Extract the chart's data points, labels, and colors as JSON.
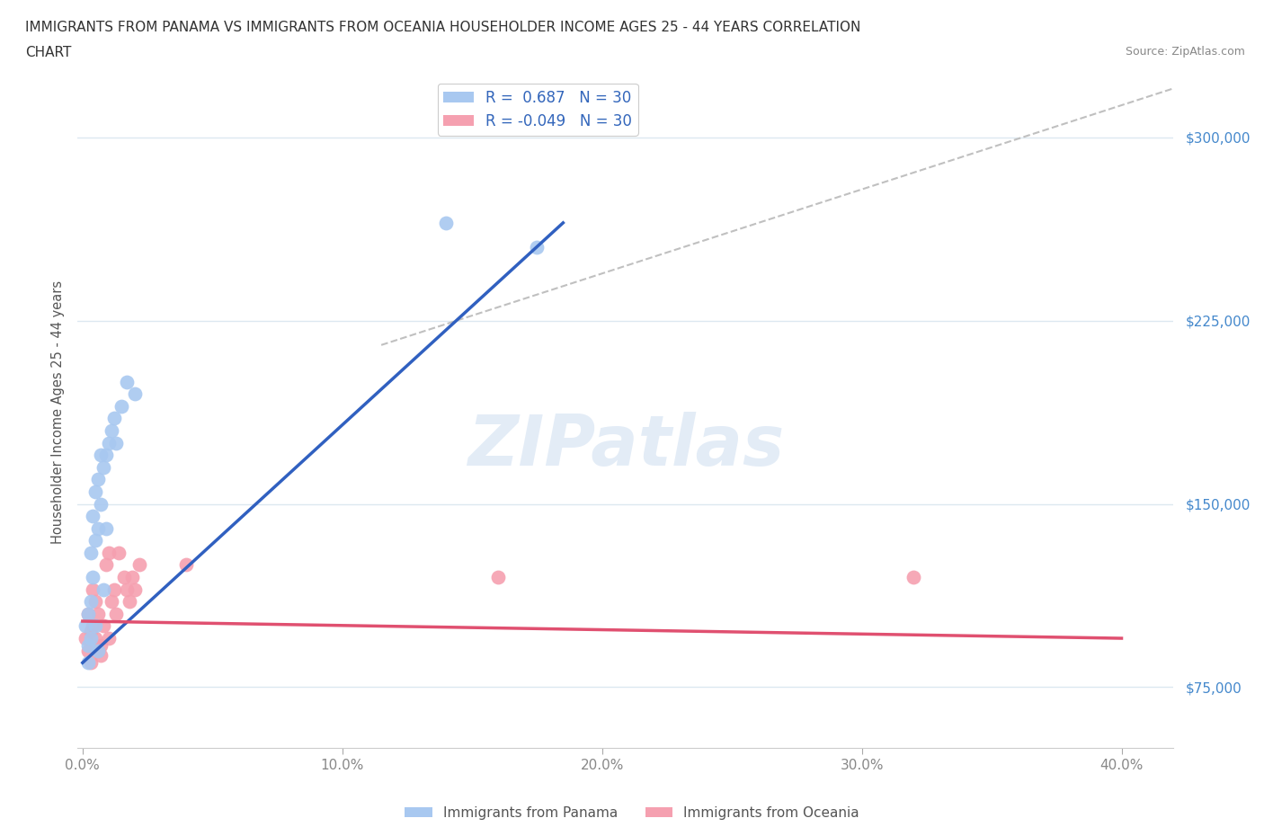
{
  "title_line1": "IMMIGRANTS FROM PANAMA VS IMMIGRANTS FROM OCEANIA HOUSEHOLDER INCOME AGES 25 - 44 YEARS CORRELATION",
  "title_line2": "CHART",
  "source": "Source: ZipAtlas.com",
  "ylabel": "Householder Income Ages 25 - 44 years",
  "xlim": [
    -0.002,
    0.42
  ],
  "ylim": [
    50000,
    325000
  ],
  "yticks": [
    75000,
    150000,
    225000,
    300000
  ],
  "ytick_labels": [
    "$75,000",
    "$150,000",
    "$225,000",
    "$300,000"
  ],
  "xticks": [
    0.0,
    0.1,
    0.2,
    0.3,
    0.4
  ],
  "xtick_labels": [
    "0.0%",
    "10.0%",
    "20.0%",
    "30.0%",
    "40.0%"
  ],
  "panama_color": "#a8c8f0",
  "oceania_color": "#f5a0b0",
  "panama_line_color": "#3060c0",
  "oceania_line_color": "#e05070",
  "diag_line_color": "#c0c0c0",
  "R_panama": 0.687,
  "N_panama": 30,
  "R_oceania": -0.049,
  "N_oceania": 30,
  "panama_x": [
    0.001,
    0.002,
    0.002,
    0.002,
    0.003,
    0.003,
    0.003,
    0.004,
    0.004,
    0.005,
    0.005,
    0.005,
    0.006,
    0.006,
    0.006,
    0.007,
    0.007,
    0.008,
    0.008,
    0.009,
    0.009,
    0.01,
    0.011,
    0.012,
    0.013,
    0.015,
    0.017,
    0.02,
    0.14,
    0.175
  ],
  "panama_y": [
    100000,
    92000,
    105000,
    85000,
    110000,
    130000,
    95000,
    120000,
    145000,
    155000,
    135000,
    100000,
    160000,
    140000,
    90000,
    170000,
    150000,
    165000,
    115000,
    170000,
    140000,
    175000,
    180000,
    185000,
    175000,
    190000,
    200000,
    195000,
    265000,
    255000
  ],
  "oceania_x": [
    0.001,
    0.002,
    0.002,
    0.003,
    0.003,
    0.004,
    0.004,
    0.005,
    0.005,
    0.006,
    0.006,
    0.007,
    0.007,
    0.008,
    0.009,
    0.01,
    0.01,
    0.011,
    0.012,
    0.013,
    0.014,
    0.016,
    0.017,
    0.018,
    0.019,
    0.02,
    0.022,
    0.04,
    0.16,
    0.32
  ],
  "oceania_y": [
    95000,
    105000,
    90000,
    98000,
    85000,
    100000,
    115000,
    95000,
    110000,
    105000,
    90000,
    92000,
    88000,
    100000,
    125000,
    130000,
    95000,
    110000,
    115000,
    105000,
    130000,
    120000,
    115000,
    110000,
    120000,
    115000,
    125000,
    125000,
    120000,
    120000
  ],
  "panama_line_x": [
    0.0,
    0.185
  ],
  "panama_line_y": [
    85000,
    265000
  ],
  "oceania_line_x": [
    0.0,
    0.4
  ],
  "oceania_line_y": [
    102000,
    95000
  ],
  "diag_line_x": [
    0.115,
    0.42
  ],
  "diag_line_y": [
    215000,
    320000
  ],
  "watermark": "ZIPatlas",
  "background_color": "#ffffff",
  "grid_color": "#dce8f0",
  "tick_label_color": "#4488cc",
  "legend_label_color": "#3366bb"
}
